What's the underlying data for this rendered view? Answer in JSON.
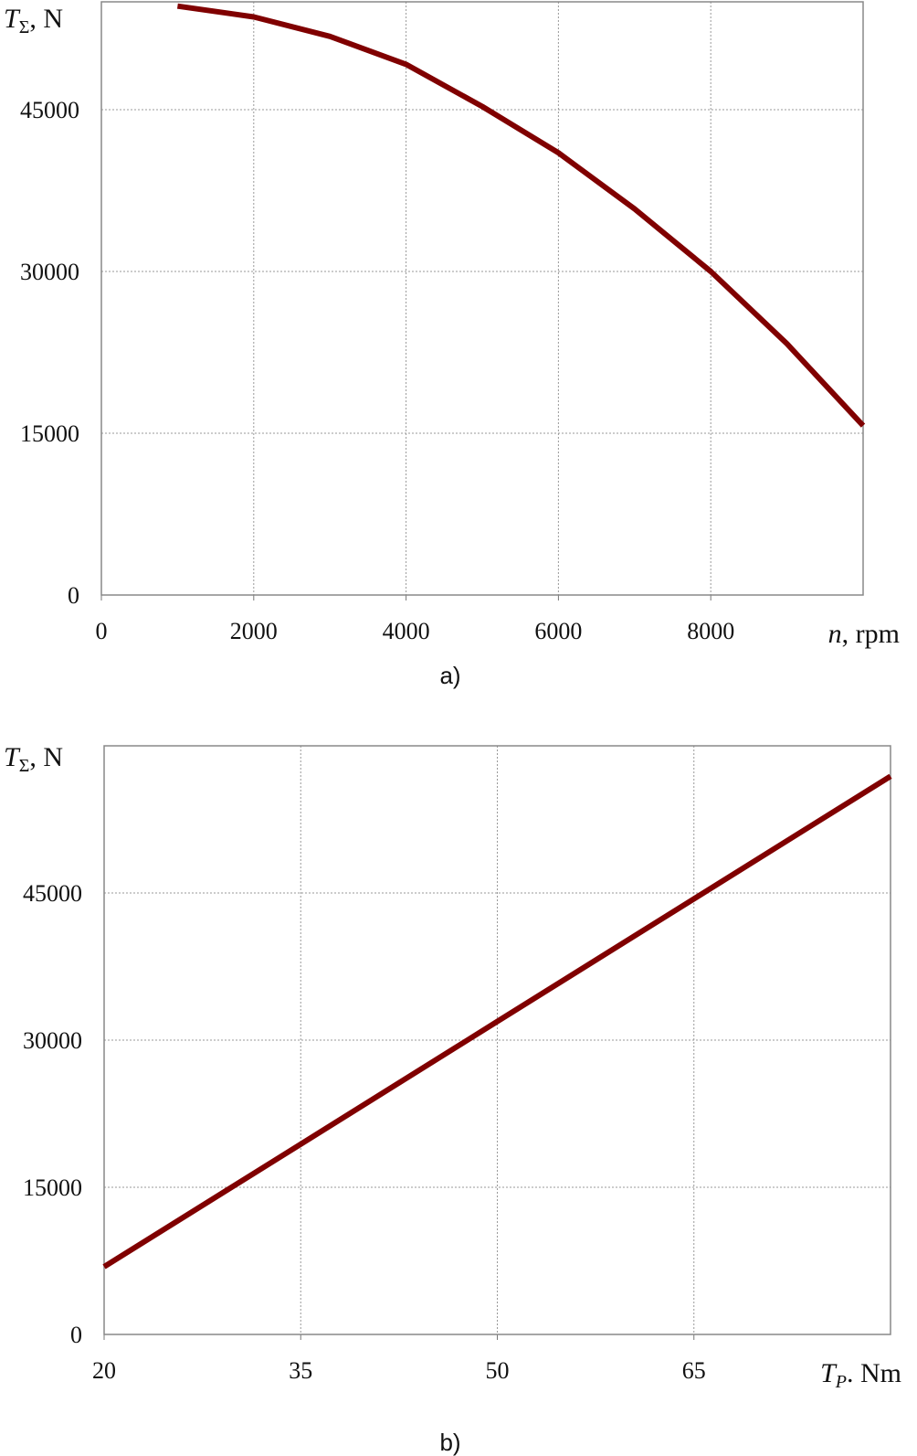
{
  "chart_data": [
    {
      "type": "line",
      "caption": "a)",
      "y_label": {
        "symbol": "T",
        "subscript": "Σ",
        "unit": ", N"
      },
      "x_label": {
        "symbol": "n",
        "unit": ", rpm"
      },
      "x": [
        1000,
        2000,
        3000,
        4000,
        5000,
        6000,
        7000,
        8000,
        9000,
        10000
      ],
      "values": [
        54600,
        53600,
        51800,
        49200,
        45300,
        41000,
        35800,
        30000,
        23300,
        15700
      ],
      "color": "#800000",
      "xlim": [
        0,
        10000
      ],
      "xticks": [
        0,
        2000,
        4000,
        6000,
        8000
      ],
      "ylim": [
        0,
        55000
      ],
      "yticks": [
        0,
        15000,
        30000,
        45000
      ],
      "grid": true
    },
    {
      "type": "line",
      "caption": "b)",
      "y_label": {
        "symbol": "T",
        "subscript": "Σ",
        "unit": ", N"
      },
      "x_label": {
        "symbol": "T",
        "subscript": "P",
        "unit": ". Nm"
      },
      "x": [
        20,
        35,
        50,
        65,
        80
      ],
      "values": [
        6900,
        19400,
        31900,
        44400,
        56900
      ],
      "color": "#800000",
      "xlim": [
        20,
        80
      ],
      "xticks": [
        20,
        35,
        50,
        65
      ],
      "ylim": [
        0,
        60000
      ],
      "yticks": [
        0,
        15000,
        30000,
        45000
      ],
      "grid": true
    }
  ]
}
